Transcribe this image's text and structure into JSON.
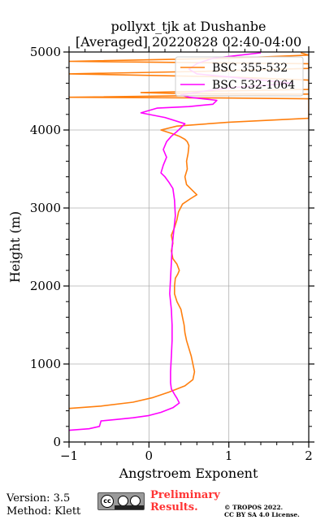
{
  "chart_data": {
    "type": "line",
    "title": "pollyxt_tjk at Dushanbe",
    "subtitle": "[Averaged] 20220828 02:40-04:00",
    "xlabel": "Angstroem Exponent",
    "ylabel": "Height (m)",
    "xlim": [
      -1,
      2
    ],
    "ylim": [
      0,
      5000
    ],
    "xticks": [
      "−1",
      "0",
      "1",
      "2"
    ],
    "yticks": [
      "0",
      "1000",
      "2000",
      "3000",
      "4000",
      "5000"
    ],
    "grid": true,
    "legend_position": "top-right",
    "series": [
      {
        "name": "BSC 355-532",
        "color": "#ff7f0e",
        "points": [
          [
            -1.0,
            430
          ],
          [
            -0.6,
            460
          ],
          [
            -0.2,
            510
          ],
          [
            0.05,
            570
          ],
          [
            0.25,
            640
          ],
          [
            0.45,
            720
          ],
          [
            0.55,
            800
          ],
          [
            0.57,
            900
          ],
          [
            0.55,
            1000
          ],
          [
            0.53,
            1100
          ],
          [
            0.5,
            1200
          ],
          [
            0.47,
            1300
          ],
          [
            0.45,
            1400
          ],
          [
            0.44,
            1500
          ],
          [
            0.42,
            1600
          ],
          [
            0.4,
            1700
          ],
          [
            0.35,
            1800
          ],
          [
            0.32,
            1900
          ],
          [
            0.32,
            2000
          ],
          [
            0.33,
            2100
          ],
          [
            0.36,
            2150
          ],
          [
            0.38,
            2200
          ],
          [
            0.35,
            2280
          ],
          [
            0.3,
            2350
          ],
          [
            0.28,
            2450
          ],
          [
            0.3,
            2550
          ],
          [
            0.28,
            2650
          ],
          [
            0.32,
            2750
          ],
          [
            0.35,
            2850
          ],
          [
            0.37,
            2950
          ],
          [
            0.42,
            3050
          ],
          [
            0.52,
            3120
          ],
          [
            0.6,
            3170
          ],
          [
            0.55,
            3220
          ],
          [
            0.47,
            3300
          ],
          [
            0.45,
            3400
          ],
          [
            0.48,
            3500
          ],
          [
            0.47,
            3600
          ],
          [
            0.49,
            3700
          ],
          [
            0.5,
            3800
          ],
          [
            0.48,
            3850
          ],
          [
            0.45,
            3880
          ],
          [
            0.38,
            3920
          ],
          [
            0.3,
            3950
          ],
          [
            0.15,
            4000
          ],
          [
            0.35,
            4050
          ],
          [
            1.0,
            4100
          ],
          [
            2.0,
            4150
          ],
          [
            2.0,
            4400
          ],
          [
            0.9,
            4410
          ],
          [
            -1.0,
            4420
          ],
          [
            2.0,
            4460
          ],
          [
            0.3,
            4470
          ],
          [
            -0.1,
            4480
          ],
          [
            0.3,
            4490
          ],
          [
            2.0,
            4520
          ],
          [
            2.0,
            4640
          ],
          [
            1.0,
            4680
          ],
          [
            -1.0,
            4720
          ],
          [
            0.6,
            4750
          ],
          [
            2.0,
            4790
          ],
          [
            2.0,
            4850
          ],
          [
            -1.0,
            4880
          ],
          [
            1.0,
            4920
          ],
          [
            2.0,
            4960
          ],
          [
            1.9,
            4990
          ]
        ]
      },
      {
        "name": "BSC 532-1064",
        "color": "#ff00ff",
        "points": [
          [
            -1.0,
            150
          ],
          [
            -0.75,
            170
          ],
          [
            -0.62,
            200
          ],
          [
            -0.6,
            270
          ],
          [
            -0.4,
            290
          ],
          [
            -0.2,
            310
          ],
          [
            0.0,
            340
          ],
          [
            0.15,
            380
          ],
          [
            0.3,
            440
          ],
          [
            0.38,
            500
          ],
          [
            0.35,
            560
          ],
          [
            0.32,
            610
          ],
          [
            0.28,
            680
          ],
          [
            0.27,
            760
          ],
          [
            0.27,
            900
          ],
          [
            0.28,
            1100
          ],
          [
            0.29,
            1300
          ],
          [
            0.29,
            1500
          ],
          [
            0.28,
            1700
          ],
          [
            0.26,
            1900
          ],
          [
            0.27,
            2100
          ],
          [
            0.28,
            2300
          ],
          [
            0.29,
            2500
          ],
          [
            0.31,
            2700
          ],
          [
            0.33,
            2900
          ],
          [
            0.32,
            3100
          ],
          [
            0.3,
            3250
          ],
          [
            0.25,
            3330
          ],
          [
            0.2,
            3400
          ],
          [
            0.15,
            3450
          ],
          [
            0.18,
            3550
          ],
          [
            0.22,
            3650
          ],
          [
            0.18,
            3750
          ],
          [
            0.22,
            3850
          ],
          [
            0.28,
            3920
          ],
          [
            0.35,
            3980
          ],
          [
            0.45,
            4080
          ],
          [
            0.2,
            4160
          ],
          [
            -0.1,
            4220
          ],
          [
            0.1,
            4280
          ],
          [
            0.5,
            4300
          ],
          [
            0.8,
            4330
          ],
          [
            0.85,
            4380
          ],
          [
            0.5,
            4420
          ],
          [
            0.4,
            4450
          ],
          [
            0.7,
            4500
          ],
          [
            1.0,
            4540
          ],
          [
            1.8,
            4600
          ],
          [
            1.2,
            4660
          ],
          [
            0.6,
            4720
          ],
          [
            0.5,
            4780
          ],
          [
            0.6,
            4850
          ],
          [
            0.8,
            4920
          ],
          [
            1.4,
            4990
          ]
        ]
      }
    ]
  },
  "footer": {
    "version": "Version: 3.5",
    "method": "Method: Klett",
    "cc_label": "cc",
    "preliminary": [
      "Preliminary",
      "Results."
    ],
    "copyright": [
      "© TROPOS 2022.",
      "CC BY SA 4.0 License."
    ]
  }
}
